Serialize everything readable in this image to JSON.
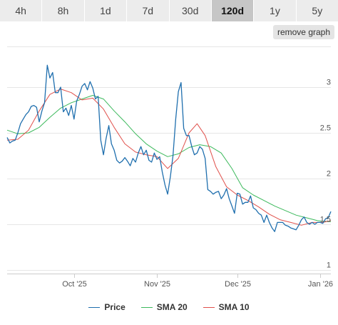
{
  "tabs": [
    {
      "label": "4h",
      "active": false
    },
    {
      "label": "8h",
      "active": false
    },
    {
      "label": "1d",
      "active": false
    },
    {
      "label": "7d",
      "active": false
    },
    {
      "label": "30d",
      "active": false
    },
    {
      "label": "120d",
      "active": true
    },
    {
      "label": "1y",
      "active": false
    },
    {
      "label": "5y",
      "active": false
    }
  ],
  "remove_graph_label": "remove graph",
  "colors": {
    "price": "#1f6fae",
    "sma20": "#3cb95c",
    "sma10": "#e0504b",
    "grid": "#e6e6e6",
    "active_tab": "#c6c6c6"
  },
  "chart_data": {
    "type": "line",
    "x_start": "2025-09-06",
    "x_end": "2026-01-05",
    "x_ticks": [
      {
        "date": "2025-10-01",
        "label": "Oct '25"
      },
      {
        "date": "2025-11-01",
        "label": "Nov '25"
      },
      {
        "date": "2025-12-01",
        "label": "Dec '25"
      },
      {
        "date": "2026-01-01",
        "label": "Jan '26"
      }
    ],
    "ylim": [
      1,
      3.5
    ],
    "y_ticks": [
      {
        "value": 1,
        "label": "1"
      },
      {
        "value": 1.5,
        "label": "1.5"
      },
      {
        "value": 2,
        "label": "2"
      },
      {
        "value": 2.5,
        "label": "2.5"
      },
      {
        "value": 3,
        "label": "3"
      }
    ],
    "grid": true,
    "legend_position": "bottom",
    "series": [
      {
        "name": "Price",
        "points": [
          [
            "2025-09-06",
            2.45
          ],
          [
            "2025-09-07",
            2.39
          ],
          [
            "2025-09-08",
            2.41
          ],
          [
            "2025-09-09",
            2.42
          ],
          [
            "2025-09-10",
            2.5
          ],
          [
            "2025-09-11",
            2.6
          ],
          [
            "2025-09-12",
            2.65
          ],
          [
            "2025-09-13",
            2.7
          ],
          [
            "2025-09-14",
            2.73
          ],
          [
            "2025-09-15",
            2.79
          ],
          [
            "2025-09-16",
            2.8
          ],
          [
            "2025-09-17",
            2.78
          ],
          [
            "2025-09-18",
            2.62
          ],
          [
            "2025-09-19",
            2.74
          ],
          [
            "2025-09-20",
            2.83
          ],
          [
            "2025-09-21",
            3.24
          ],
          [
            "2025-09-22",
            3.1
          ],
          [
            "2025-09-23",
            3.16
          ],
          [
            "2025-09-24",
            2.94
          ],
          [
            "2025-09-25",
            2.94
          ],
          [
            "2025-09-26",
            3.0
          ],
          [
            "2025-09-27",
            2.73
          ],
          [
            "2025-09-28",
            2.77
          ],
          [
            "2025-09-29",
            2.69
          ],
          [
            "2025-09-30",
            2.8
          ],
          [
            "2025-10-01",
            2.65
          ],
          [
            "2025-10-02",
            2.85
          ],
          [
            "2025-10-03",
            2.92
          ],
          [
            "2025-10-04",
            3.01
          ],
          [
            "2025-10-05",
            3.04
          ],
          [
            "2025-10-06",
            2.97
          ],
          [
            "2025-10-07",
            3.06
          ],
          [
            "2025-10-08",
            2.99
          ],
          [
            "2025-10-09",
            2.87
          ],
          [
            "2025-10-10",
            2.9
          ],
          [
            "2025-10-11",
            2.42
          ],
          [
            "2025-10-12",
            2.26
          ],
          [
            "2025-10-13",
            2.44
          ],
          [
            "2025-10-14",
            2.58
          ],
          [
            "2025-10-15",
            2.38
          ],
          [
            "2025-10-16",
            2.31
          ],
          [
            "2025-10-17",
            2.2
          ],
          [
            "2025-10-18",
            2.17
          ],
          [
            "2025-10-19",
            2.19
          ],
          [
            "2025-10-20",
            2.23
          ],
          [
            "2025-10-21",
            2.19
          ],
          [
            "2025-10-22",
            2.14
          ],
          [
            "2025-10-23",
            2.22
          ],
          [
            "2025-10-24",
            2.18
          ],
          [
            "2025-10-25",
            2.28
          ],
          [
            "2025-10-26",
            2.35
          ],
          [
            "2025-10-27",
            2.26
          ],
          [
            "2025-10-28",
            2.31
          ],
          [
            "2025-10-29",
            2.2
          ],
          [
            "2025-10-30",
            2.18
          ],
          [
            "2025-10-31",
            2.28
          ],
          [
            "2025-11-01",
            2.21
          ],
          [
            "2025-11-02",
            2.24
          ],
          [
            "2025-11-03",
            2.07
          ],
          [
            "2025-11-04",
            1.93
          ],
          [
            "2025-11-05",
            1.83
          ],
          [
            "2025-11-06",
            2.02
          ],
          [
            "2025-11-07",
            2.25
          ],
          [
            "2025-11-08",
            2.65
          ],
          [
            "2025-11-09",
            2.95
          ],
          [
            "2025-11-10",
            3.05
          ],
          [
            "2025-11-11",
            2.55
          ],
          [
            "2025-11-12",
            2.47
          ],
          [
            "2025-11-13",
            2.47
          ],
          [
            "2025-11-14",
            2.35
          ],
          [
            "2025-11-15",
            2.26
          ],
          [
            "2025-11-16",
            2.28
          ],
          [
            "2025-11-17",
            2.35
          ],
          [
            "2025-11-18",
            2.32
          ],
          [
            "2025-11-19",
            2.22
          ],
          [
            "2025-11-20",
            1.88
          ],
          [
            "2025-11-21",
            1.86
          ],
          [
            "2025-11-22",
            1.83
          ],
          [
            "2025-11-23",
            1.85
          ],
          [
            "2025-11-24",
            1.86
          ],
          [
            "2025-11-25",
            1.78
          ],
          [
            "2025-11-26",
            1.82
          ],
          [
            "2025-11-27",
            1.89
          ],
          [
            "2025-11-28",
            1.78
          ],
          [
            "2025-11-29",
            1.7
          ],
          [
            "2025-11-30",
            1.62
          ],
          [
            "2025-12-01",
            1.84
          ],
          [
            "2025-12-02",
            1.83
          ],
          [
            "2025-12-03",
            1.72
          ],
          [
            "2025-12-04",
            1.74
          ],
          [
            "2025-12-05",
            1.74
          ],
          [
            "2025-12-06",
            1.81
          ],
          [
            "2025-12-07",
            1.68
          ],
          [
            "2025-12-08",
            1.66
          ],
          [
            "2025-12-09",
            1.62
          ],
          [
            "2025-12-10",
            1.6
          ],
          [
            "2025-12-11",
            1.52
          ],
          [
            "2025-12-12",
            1.6
          ],
          [
            "2025-12-13",
            1.52
          ],
          [
            "2025-12-14",
            1.46
          ],
          [
            "2025-12-15",
            1.42
          ],
          [
            "2025-12-16",
            1.52
          ],
          [
            "2025-12-17",
            1.52
          ],
          [
            "2025-12-18",
            1.52
          ],
          [
            "2025-12-19",
            1.49
          ],
          [
            "2025-12-20",
            1.48
          ],
          [
            "2025-12-21",
            1.46
          ],
          [
            "2025-12-22",
            1.45
          ],
          [
            "2025-12-23",
            1.44
          ],
          [
            "2025-12-24",
            1.49
          ],
          [
            "2025-12-25",
            1.55
          ],
          [
            "2025-12-26",
            1.58
          ],
          [
            "2025-12-27",
            1.52
          ],
          [
            "2025-12-28",
            1.5
          ],
          [
            "2025-12-29",
            1.52
          ],
          [
            "2025-12-30",
            1.5
          ],
          [
            "2025-12-31",
            1.52
          ],
          [
            "2026-01-01",
            1.52
          ],
          [
            "2026-01-02",
            1.51
          ],
          [
            "2026-01-03",
            1.56
          ],
          [
            "2026-01-04",
            1.57
          ],
          [
            "2026-01-05",
            1.64
          ]
        ]
      },
      {
        "name": "SMA 20",
        "points": [
          [
            "2025-09-06",
            2.53
          ],
          [
            "2025-09-10",
            2.49
          ],
          [
            "2025-09-14",
            2.5
          ],
          [
            "2025-09-18",
            2.56
          ],
          [
            "2025-09-22",
            2.67
          ],
          [
            "2025-09-26",
            2.77
          ],
          [
            "2025-09-30",
            2.83
          ],
          [
            "2025-10-04",
            2.87
          ],
          [
            "2025-10-08",
            2.91
          ],
          [
            "2025-10-12",
            2.87
          ],
          [
            "2025-10-16",
            2.74
          ],
          [
            "2025-10-20",
            2.62
          ],
          [
            "2025-10-24",
            2.49
          ],
          [
            "2025-10-28",
            2.38
          ],
          [
            "2025-11-01",
            2.3
          ],
          [
            "2025-11-05",
            2.24
          ],
          [
            "2025-11-09",
            2.27
          ],
          [
            "2025-11-13",
            2.34
          ],
          [
            "2025-11-17",
            2.37
          ],
          [
            "2025-11-21",
            2.35
          ],
          [
            "2025-11-25",
            2.28
          ],
          [
            "2025-11-29",
            2.11
          ],
          [
            "2025-12-03",
            1.9
          ],
          [
            "2025-12-07",
            1.82
          ],
          [
            "2025-12-11",
            1.76
          ],
          [
            "2025-12-15",
            1.7
          ],
          [
            "2025-12-19",
            1.65
          ],
          [
            "2025-12-23",
            1.6
          ],
          [
            "2025-12-27",
            1.57
          ],
          [
            "2025-12-31",
            1.54
          ],
          [
            "2026-01-03",
            1.53
          ],
          [
            "2026-01-05",
            1.53
          ]
        ]
      },
      {
        "name": "SMA 10",
        "points": [
          [
            "2025-09-06",
            2.42
          ],
          [
            "2025-09-10",
            2.43
          ],
          [
            "2025-09-14",
            2.53
          ],
          [
            "2025-09-18",
            2.74
          ],
          [
            "2025-09-22",
            2.92
          ],
          [
            "2025-09-26",
            2.98
          ],
          [
            "2025-09-30",
            2.94
          ],
          [
            "2025-10-04",
            2.86
          ],
          [
            "2025-10-08",
            2.88
          ],
          [
            "2025-10-12",
            2.76
          ],
          [
            "2025-10-16",
            2.56
          ],
          [
            "2025-10-20",
            2.38
          ],
          [
            "2025-10-24",
            2.29
          ],
          [
            "2025-10-28",
            2.26
          ],
          [
            "2025-11-01",
            2.24
          ],
          [
            "2025-11-05",
            2.11
          ],
          [
            "2025-11-09",
            2.22
          ],
          [
            "2025-11-13",
            2.5
          ],
          [
            "2025-11-16",
            2.6
          ],
          [
            "2025-11-19",
            2.47
          ],
          [
            "2025-11-23",
            2.13
          ],
          [
            "2025-11-27",
            1.91
          ],
          [
            "2025-12-01",
            1.82
          ],
          [
            "2025-12-05",
            1.76
          ],
          [
            "2025-12-09",
            1.69
          ],
          [
            "2025-12-13",
            1.61
          ],
          [
            "2025-12-17",
            1.55
          ],
          [
            "2025-12-21",
            1.52
          ],
          [
            "2025-12-25",
            1.49
          ],
          [
            "2025-12-29",
            1.52
          ],
          [
            "2026-01-02",
            1.52
          ],
          [
            "2026-01-05",
            1.54
          ]
        ]
      }
    ]
  },
  "legend": [
    {
      "label": "Price",
      "color_key": "price"
    },
    {
      "label": "SMA 20",
      "color_key": "sma20"
    },
    {
      "label": "SMA 10",
      "color_key": "sma10"
    }
  ]
}
